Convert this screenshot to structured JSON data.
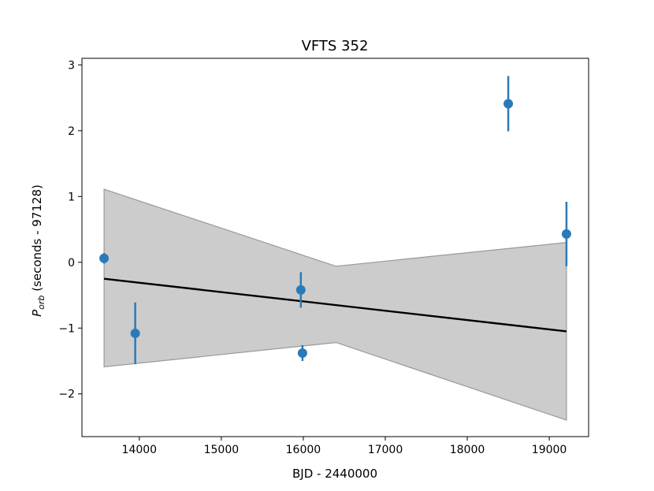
{
  "chart_data": {
    "type": "scatter",
    "title": "VFTS 352",
    "xlabel": "BJD - 2440000",
    "ylabel_main": "P",
    "ylabel_sub": "orb",
    "ylabel_rest": " (seconds - 97128)",
    "xlim": [
      13300,
      19480
    ],
    "ylim": [
      -2.65,
      3.1
    ],
    "xticks": [
      14000,
      15000,
      16000,
      17000,
      18000,
      19000
    ],
    "yticks": [
      -2,
      -1,
      0,
      1,
      2,
      3
    ],
    "ytick_labels": [
      "−2",
      "−1",
      "0",
      "1",
      "2",
      "3"
    ],
    "points": [
      {
        "x": 13570,
        "y": 0.06,
        "err": 0.08
      },
      {
        "x": 13950,
        "y": -1.08,
        "err": 0.47
      },
      {
        "x": 15970,
        "y": -0.42,
        "err": 0.27
      },
      {
        "x": 15990,
        "y": -1.38,
        "err": 0.12
      },
      {
        "x": 18500,
        "y": 2.41,
        "err": 0.42
      },
      {
        "x": 19210,
        "y": 0.43,
        "err": 0.49
      }
    ],
    "fit_line": [
      [
        13570,
        -0.25
      ],
      [
        19210,
        -1.05
      ]
    ],
    "band_upper": [
      [
        13570,
        1.11
      ],
      [
        16400,
        -0.06
      ],
      [
        19210,
        0.3
      ]
    ],
    "band_lower": [
      [
        13570,
        -1.59
      ],
      [
        16400,
        -1.22
      ],
      [
        19210,
        -2.4
      ]
    ],
    "colors": {
      "points": "#2a7ab9",
      "fit": "#000000",
      "band_fill": "#cccccc",
      "band_edge": "#999999"
    },
    "grid": false
  }
}
